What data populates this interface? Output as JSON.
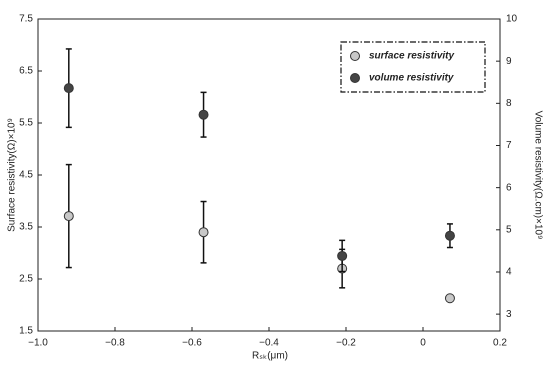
{
  "chart_data": {
    "type": "scatter",
    "x_label": "Rₛₖ(μm)",
    "y_label": "Surface resistivity(Ω)×10⁹",
    "y2_label": "Volume resistivity(Ω.cm)×10⁹",
    "x": [
      -0.92,
      -0.57,
      -0.21,
      0.07
    ],
    "series": [
      {
        "name": "surface resistivity",
        "color": "#c8c8c8",
        "axis": "y",
        "values": [
          3.71,
          3.4,
          2.7,
          2.13
        ],
        "errors": [
          0.99,
          0.59,
          0.37,
          null
        ]
      },
      {
        "name": "volume resistivity",
        "color": "#444444",
        "axis": "y2",
        "values": [
          8.36,
          7.73,
          4.38,
          4.86
        ],
        "errors": [
          0.93,
          0.53,
          0.37,
          0.28
        ]
      }
    ],
    "xlim": [
      -1.0,
      0.2
    ],
    "xticks": [
      {
        "value": -1.0,
        "label": "−1.0"
      },
      {
        "value": -0.8,
        "label": "−0.8"
      },
      {
        "value": -0.6,
        "label": "−0.6"
      },
      {
        "value": -0.4,
        "label": "−0.4"
      },
      {
        "value": -0.2,
        "label": "−0.2"
      },
      0,
      0.2
    ],
    "ylim": [
      1.5,
      7.5
    ],
    "yticks": [
      1.5,
      2.5,
      3.5,
      4.5,
      5.5,
      6.5,
      7.5
    ],
    "y2lim": [
      2.6,
      10
    ],
    "y2ticks": [
      3,
      4,
      5,
      6,
      7,
      8,
      9,
      10
    ],
    "legend": "upper-right"
  }
}
